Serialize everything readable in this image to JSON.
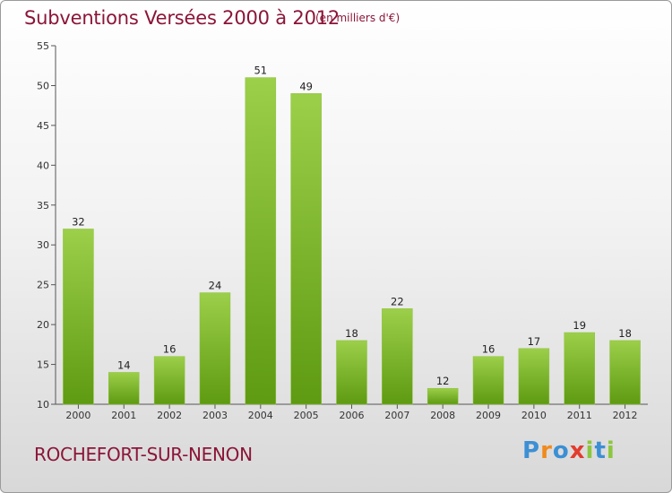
{
  "header": {
    "title": "Subventions Versées 2000 à 2012",
    "subtitle": "(en milliers d'€)"
  },
  "footer": {
    "commune": "ROCHEFORT-SUR-NENON",
    "logo_text": "Proxiti"
  },
  "colors": {
    "title": "#8b1538",
    "bar_top": "#9ccf4a",
    "bar_bottom": "#5e9a12",
    "logo_letters": [
      "#3c8fd4",
      "#f08a1c",
      "#3c8fd4",
      "#e23c2e",
      "#8cc63f",
      "#3c8fd4",
      "#8cc63f"
    ]
  },
  "chart_data": {
    "type": "bar",
    "categories": [
      "2000",
      "2001",
      "2002",
      "2003",
      "2004",
      "2005",
      "2006",
      "2007",
      "2008",
      "2009",
      "2010",
      "2011",
      "2012"
    ],
    "values": [
      32,
      14,
      16,
      24,
      51,
      49,
      18,
      22,
      12,
      16,
      17,
      19,
      18
    ],
    "ylim": [
      10,
      55
    ],
    "yticks": [
      10,
      15,
      20,
      25,
      30,
      35,
      40,
      45,
      50,
      55
    ],
    "grid": false,
    "data_labels": true,
    "legend": "none"
  }
}
